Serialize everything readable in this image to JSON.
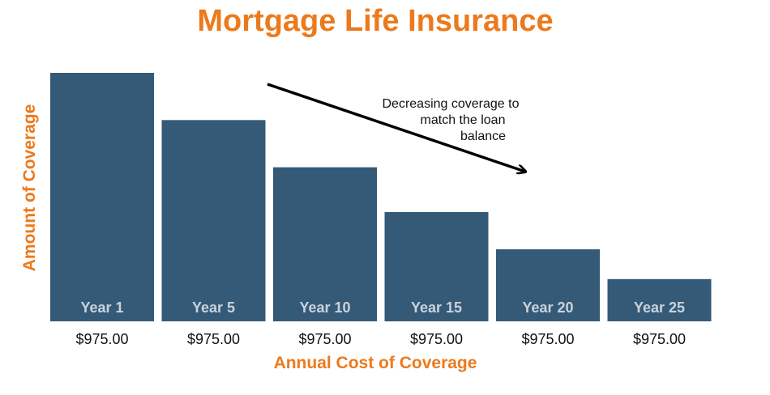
{
  "chart_data": {
    "type": "bar",
    "title": "Mortgage Life Insurance",
    "xlabel": "Annual Cost of Coverage",
    "ylabel": "Amount of Coverage",
    "categories": [
      "Year 1",
      "Year 5",
      "Year 10",
      "Year 15",
      "Year 20",
      "Year 25"
    ],
    "values": [
      100,
      81,
      62,
      44,
      29,
      17
    ],
    "cost_labels": [
      "$975.00",
      "$975.00",
      "$975.00",
      "$975.00",
      "$975.00",
      "$975.00"
    ],
    "ylim": [
      0,
      100
    ],
    "grid": false,
    "bar_color": "#355a78",
    "accent_color": "#ec7a1c",
    "annotation": {
      "lines": [
        "Decreasing coverage to",
        "match the loan",
        "balance"
      ]
    }
  }
}
